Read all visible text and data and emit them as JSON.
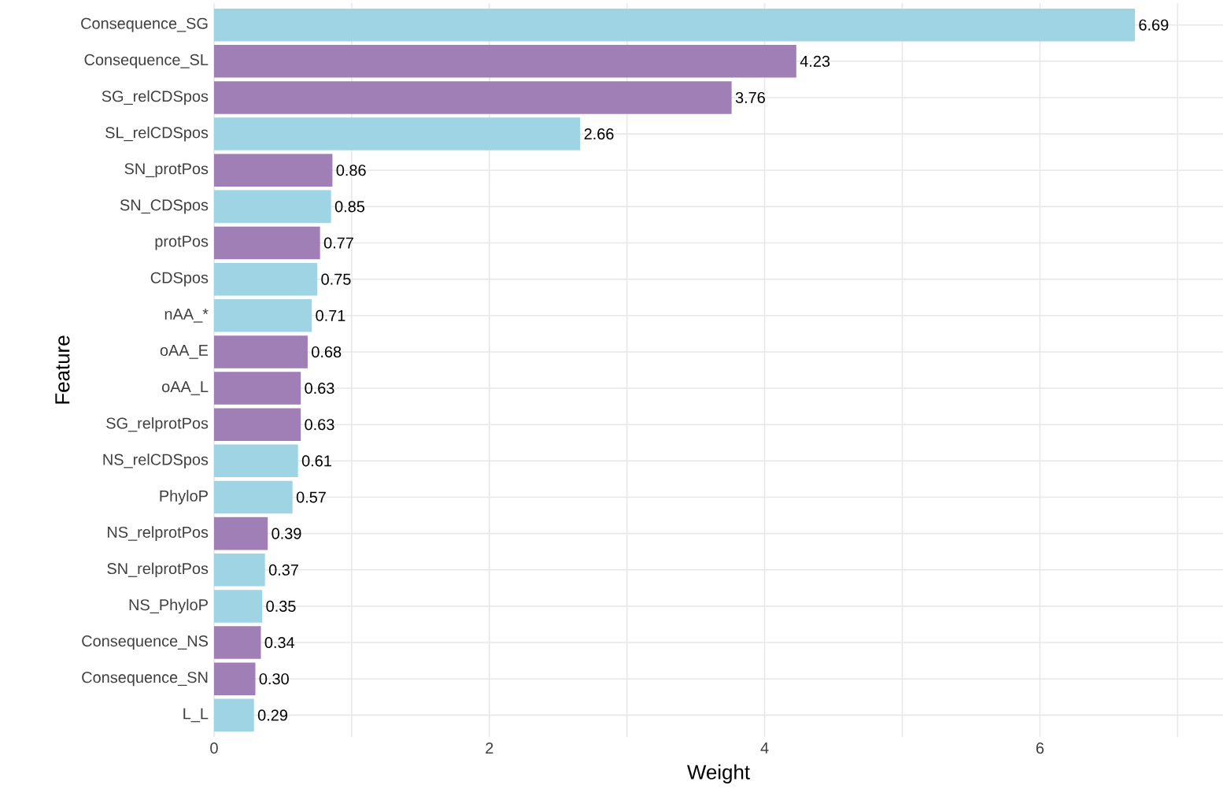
{
  "chart_data": {
    "type": "bar",
    "orientation": "horizontal",
    "xlabel": "Weight",
    "ylabel": "Feature",
    "categories": [
      "Consequence_SG",
      "Consequence_SL",
      "SG_relCDSpos",
      "SL_relCDSpos",
      "SN_protPos",
      "SN_CDSpos",
      "protPos",
      "CDSpos",
      "nAA_*",
      "oAA_E",
      "oAA_L",
      "SG_relprotPos",
      "NS_relCDSpos",
      "PhyloP",
      "NS_relprotPos",
      "SN_relprotPos",
      "NS_PhyloP",
      "Consequence_NS",
      "Consequence_SN",
      "L_L"
    ],
    "values": [
      6.69,
      4.23,
      3.76,
      2.66,
      0.86,
      0.85,
      0.77,
      0.75,
      0.71,
      0.68,
      0.63,
      0.63,
      0.61,
      0.57,
      0.39,
      0.37,
      0.35,
      0.34,
      0.3,
      0.29
    ],
    "value_labels": [
      "6.69",
      "4.23",
      "3.76",
      "2.66",
      "0.86",
      "0.85",
      "0.77",
      "0.75",
      "0.71",
      "0.68",
      "0.63",
      "0.63",
      "0.61",
      "0.57",
      "0.39",
      "0.37",
      "0.35",
      "0.34",
      "0.30",
      "0.29"
    ],
    "colors": [
      "#9fd4e5",
      "#a07fb6",
      "#a07fb6",
      "#9fd4e5",
      "#a07fb6",
      "#9fd4e5",
      "#a07fb6",
      "#9fd4e5",
      "#9fd4e5",
      "#a07fb6",
      "#a07fb6",
      "#a07fb6",
      "#9fd4e5",
      "#9fd4e5",
      "#a07fb6",
      "#9fd4e5",
      "#9fd4e5",
      "#a07fb6",
      "#a07fb6",
      "#9fd4e5"
    ],
    "xlim": [
      0,
      7.33
    ],
    "xticks": [
      0,
      {
        "value": 1,
        "label": null
      },
      2,
      {
        "value": 3,
        "label": null
      },
      4,
      {
        "value": 5,
        "label": null
      },
      6,
      {
        "value": 7,
        "label": null
      }
    ],
    "grid": true
  }
}
